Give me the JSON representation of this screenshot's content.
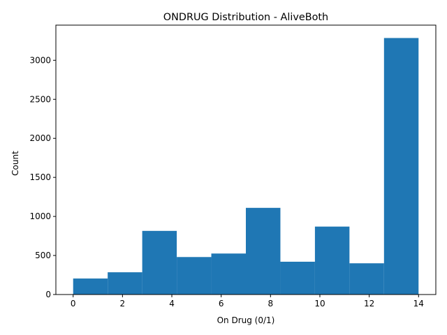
{
  "chart_data": {
    "type": "bar",
    "title": "ONDRUG Distribution - AliveBoth",
    "xlabel": "On Drug (0/1)",
    "ylabel": "Count",
    "bin_edges": [
      0,
      1.4,
      2.8,
      4.2,
      5.6,
      7.0,
      8.4,
      9.8,
      11.2,
      12.6,
      14.0
    ],
    "values": [
      205,
      285,
      815,
      480,
      525,
      1110,
      420,
      870,
      400,
      3285
    ],
    "xlim": [
      -0.7,
      14.7
    ],
    "ylim": [
      0,
      3450
    ],
    "xticks": [
      0,
      2,
      4,
      6,
      8,
      10,
      12,
      14
    ],
    "xtick_labels": [
      "0",
      "2",
      "4",
      "6",
      "8",
      "10",
      "12",
      "14"
    ],
    "yticks": [
      0,
      500,
      1000,
      1500,
      2000,
      2500,
      3000
    ],
    "ytick_labels": [
      "0",
      "500",
      "1000",
      "1500",
      "2000",
      "2500",
      "3000"
    ],
    "grid": false,
    "bar_color": "#1f77b4"
  }
}
